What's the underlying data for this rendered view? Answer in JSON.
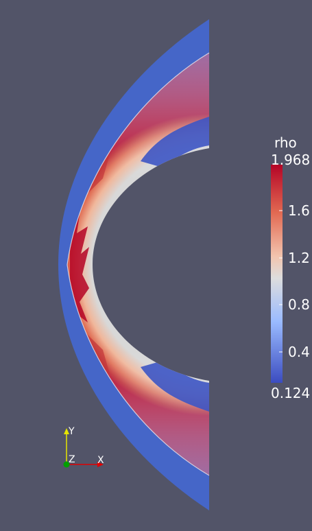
{
  "scene": {
    "background_color": "#525468",
    "field_name": "rho"
  },
  "color_legend": {
    "title": "rho",
    "max_label": "1.968",
    "min_label": "0.124",
    "tick_labels": [
      "1.6",
      "1.2",
      "0.8",
      "0.4"
    ],
    "colormap": "Cool to Warm",
    "color_low": "#3b4cc0",
    "color_mid": "#dddddd",
    "color_high": "#b40426"
  },
  "orientation_axes": {
    "x_label": "X",
    "y_label": "Y",
    "z_label": "Z",
    "x_color": "#ff0000",
    "y_color": "#ffff00",
    "z_color": "#00c000"
  }
}
